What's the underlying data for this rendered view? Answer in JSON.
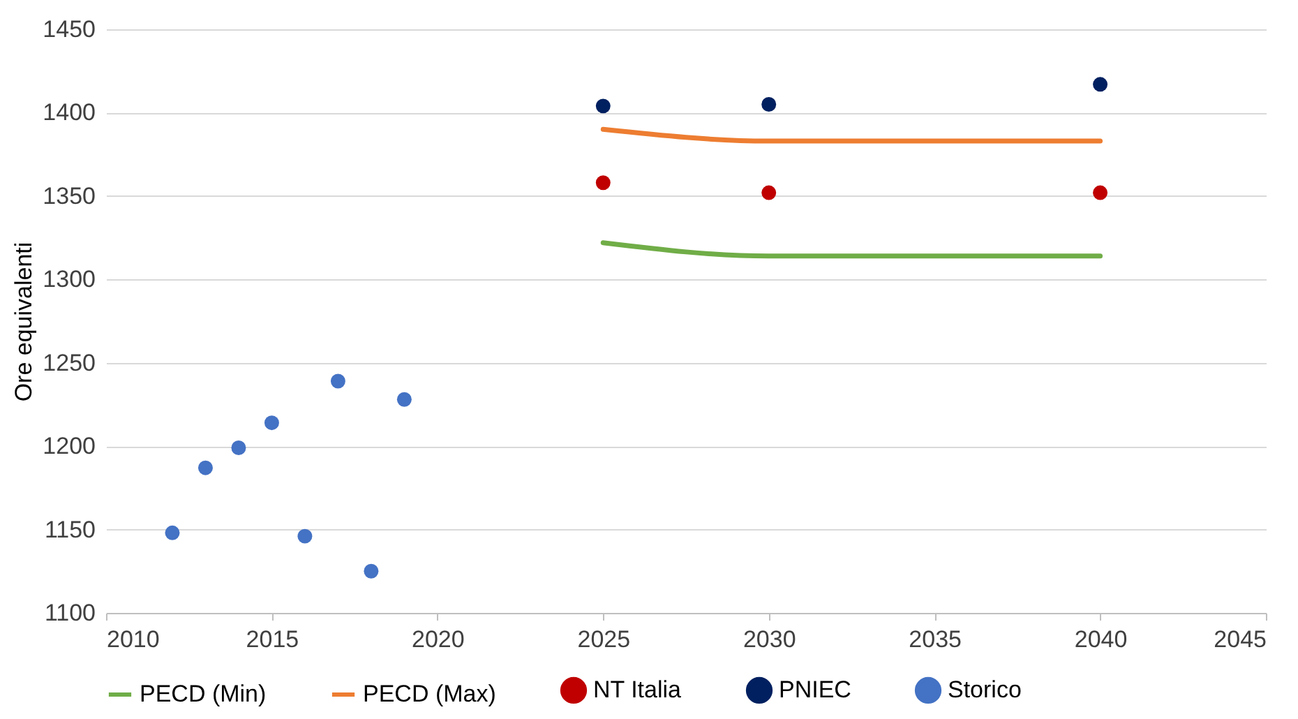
{
  "chart_data": {
    "type": "scatter",
    "ylabel": "Ore equivalenti",
    "xlim": [
      2010,
      2045
    ],
    "xticks": [
      2010,
      2015,
      2020,
      2025,
      2030,
      2035,
      2040,
      2045
    ],
    "ylim": [
      1100,
      1450
    ],
    "yticks": [
      1100,
      1150,
      1200,
      1250,
      1300,
      1350,
      1400,
      1450
    ],
    "grid": "y",
    "legend": "bottom",
    "marker": "circle",
    "series": [
      {
        "name": "PECD (Min)",
        "type": "line",
        "marker": "none",
        "color": "#70ad47",
        "x": [
          2025,
          2030,
          2040
        ],
        "values": [
          1322,
          1314,
          1314
        ]
      },
      {
        "name": "PECD (Max)",
        "type": "line",
        "marker": "none",
        "color": "#ed7d31",
        "x": [
          2025,
          2030,
          2040
        ],
        "values": [
          1390,
          1383,
          1383
        ]
      },
      {
        "name": "NT Italia",
        "color": "#c00000",
        "x": [
          2025,
          2030,
          2040
        ],
        "values": [
          1358,
          1352,
          1352
        ]
      },
      {
        "name": "PNIEC",
        "color": "#002060",
        "x": [
          2025,
          2030,
          2040
        ],
        "values": [
          1404,
          1405,
          1417
        ]
      },
      {
        "name": "Storico",
        "color": "#4472c4",
        "x": [
          2012,
          2013,
          2014,
          2015,
          2016,
          2017,
          2018,
          2019
        ],
        "values": [
          1148,
          1187,
          1199,
          1214,
          1146,
          1239,
          1125,
          1228
        ]
      }
    ]
  }
}
